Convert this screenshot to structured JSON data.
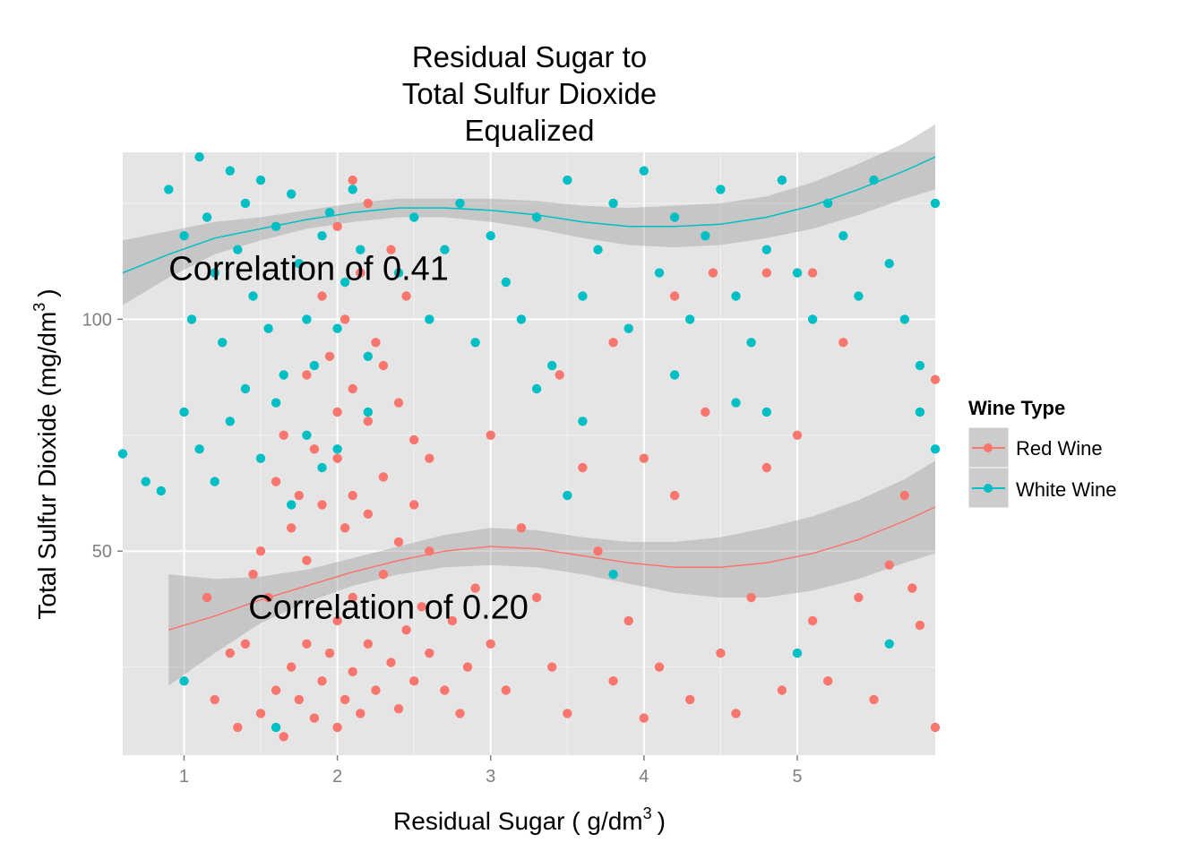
{
  "chart_data": {
    "type": "scatter",
    "title_lines": [
      "Residual Sugar to",
      "Total Sulfur Dioxide",
      "Equalized"
    ],
    "xlabel_main": "Residual Sugar ( g",
    "xlabel_unit": "dm",
    "xlabel_sup": "3",
    "xlabel_close": ")",
    "ylabel_main": "Total Sulfur Dioxide (mg",
    "ylabel_unit": "dm",
    "ylabel_sup": "3",
    "ylabel_close": ")",
    "xlim": [
      0.6,
      5.9
    ],
    "ylim": [
      6,
      136
    ],
    "x_ticks": [
      1,
      2,
      3,
      4,
      5
    ],
    "x_tick_labels": [
      "1",
      "2",
      "3",
      "4",
      "5"
    ],
    "y_ticks": [
      50,
      100
    ],
    "y_tick_labels": [
      "50",
      "100"
    ],
    "grid": true,
    "legend": {
      "title": "Wine Type",
      "position": "right",
      "entries": [
        "Red Wine",
        "White Wine"
      ]
    },
    "annotations": [
      {
        "text": "Correlation of 0.41",
        "x": 0.9,
        "y": 111
      },
      {
        "text": "Correlation of 0.20",
        "x": 1.42,
        "y": 38
      }
    ],
    "series": [
      {
        "name": "Red Wine",
        "color": "#f8766d",
        "points": [
          [
            1.35,
            12
          ],
          [
            1.5,
            15
          ],
          [
            1.6,
            20
          ],
          [
            1.65,
            10
          ],
          [
            1.7,
            25
          ],
          [
            1.75,
            18
          ],
          [
            1.8,
            30
          ],
          [
            1.85,
            14
          ],
          [
            1.9,
            22
          ],
          [
            1.95,
            28
          ],
          [
            2.0,
            12
          ],
          [
            2.0,
            35
          ],
          [
            2.05,
            18
          ],
          [
            2.1,
            24
          ],
          [
            2.1,
            40
          ],
          [
            2.15,
            15
          ],
          [
            2.2,
            30
          ],
          [
            2.25,
            20
          ],
          [
            2.3,
            45
          ],
          [
            2.35,
            26
          ],
          [
            2.4,
            16
          ],
          [
            2.45,
            33
          ],
          [
            2.5,
            22
          ],
          [
            2.55,
            38
          ],
          [
            2.6,
            28
          ],
          [
            2.7,
            20
          ],
          [
            2.8,
            15
          ],
          [
            1.4,
            30
          ],
          [
            1.55,
            40
          ],
          [
            1.7,
            55
          ],
          [
            1.8,
            48
          ],
          [
            1.9,
            60
          ],
          [
            2.0,
            70
          ],
          [
            2.05,
            55
          ],
          [
            2.1,
            62
          ],
          [
            2.2,
            58
          ],
          [
            2.3,
            66
          ],
          [
            2.4,
            52
          ],
          [
            2.5,
            60
          ],
          [
            2.6,
            50
          ],
          [
            1.75,
            62
          ],
          [
            1.85,
            72
          ],
          [
            2.0,
            80
          ],
          [
            2.1,
            85
          ],
          [
            2.2,
            78
          ],
          [
            2.3,
            90
          ],
          [
            2.4,
            82
          ],
          [
            2.5,
            74
          ],
          [
            2.6,
            70
          ],
          [
            1.95,
            92
          ],
          [
            2.05,
            100
          ],
          [
            2.15,
            110
          ],
          [
            2.25,
            95
          ],
          [
            2.0,
            120
          ],
          [
            2.1,
            130
          ],
          [
            1.9,
            105
          ],
          [
            2.2,
            125
          ],
          [
            2.35,
            115
          ],
          [
            2.45,
            105
          ],
          [
            1.8,
            88
          ],
          [
            1.65,
            75
          ],
          [
            1.6,
            65
          ],
          [
            1.5,
            50
          ],
          [
            1.45,
            45
          ],
          [
            1.3,
            28
          ],
          [
            1.2,
            18
          ],
          [
            1.15,
            40
          ],
          [
            2.75,
            35
          ],
          [
            2.85,
            25
          ],
          [
            2.9,
            42
          ],
          [
            3.0,
            30
          ],
          [
            3.1,
            20
          ],
          [
            3.2,
            55
          ],
          [
            3.3,
            40
          ],
          [
            3.4,
            25
          ],
          [
            3.5,
            15
          ],
          [
            3.6,
            68
          ],
          [
            3.7,
            50
          ],
          [
            3.8,
            22
          ],
          [
            3.9,
            35
          ],
          [
            4.0,
            70
          ],
          [
            4.0,
            14
          ],
          [
            4.1,
            25
          ],
          [
            4.2,
            62
          ],
          [
            4.3,
            18
          ],
          [
            4.4,
            80
          ],
          [
            4.5,
            28
          ],
          [
            4.6,
            15
          ],
          [
            4.7,
            40
          ],
          [
            4.8,
            68
          ],
          [
            4.9,
            20
          ],
          [
            5.0,
            75
          ],
          [
            5.1,
            35
          ],
          [
            5.2,
            22
          ],
          [
            5.3,
            95
          ],
          [
            5.4,
            40
          ],
          [
            5.5,
            18
          ],
          [
            5.6,
            47
          ],
          [
            5.7,
            62
          ],
          [
            5.8,
            34
          ],
          [
            5.9,
            12
          ],
          [
            5.9,
            87
          ],
          [
            5.75,
            42
          ],
          [
            4.45,
            110
          ],
          [
            4.8,
            110
          ],
          [
            5.1,
            110
          ],
          [
            3.45,
            88
          ],
          [
            3.8,
            95
          ],
          [
            4.2,
            105
          ],
          [
            3.0,
            75
          ]
        ]
      },
      {
        "name": "White Wine",
        "color": "#00bfc4",
        "points": [
          [
            0.6,
            71
          ],
          [
            0.75,
            65
          ],
          [
            0.9,
            128
          ],
          [
            1.0,
            118
          ],
          [
            1.05,
            100
          ],
          [
            1.1,
            135
          ],
          [
            1.15,
            122
          ],
          [
            1.2,
            110
          ],
          [
            1.25,
            95
          ],
          [
            1.3,
            132
          ],
          [
            1.35,
            115
          ],
          [
            1.4,
            125
          ],
          [
            1.45,
            105
          ],
          [
            1.5,
            130
          ],
          [
            1.55,
            98
          ],
          [
            1.6,
            120
          ],
          [
            1.65,
            88
          ],
          [
            1.7,
            127
          ],
          [
            1.75,
            112
          ],
          [
            1.8,
            100
          ],
          [
            1.85,
            90
          ],
          [
            1.9,
            118
          ],
          [
            1.95,
            123
          ],
          [
            2.0,
            98
          ],
          [
            2.05,
            108
          ],
          [
            2.1,
            128
          ],
          [
            2.15,
            115
          ],
          [
            2.2,
            92
          ],
          [
            1.0,
            80
          ],
          [
            1.1,
            72
          ],
          [
            1.2,
            65
          ],
          [
            1.3,
            78
          ],
          [
            1.4,
            85
          ],
          [
            1.5,
            70
          ],
          [
            1.6,
            82
          ],
          [
            1.7,
            60
          ],
          [
            1.8,
            75
          ],
          [
            1.9,
            68
          ],
          [
            2.0,
            72
          ],
          [
            2.2,
            80
          ],
          [
            2.4,
            110
          ],
          [
            2.5,
            122
          ],
          [
            2.6,
            100
          ],
          [
            2.7,
            115
          ],
          [
            2.8,
            125
          ],
          [
            2.9,
            95
          ],
          [
            3.0,
            118
          ],
          [
            3.1,
            108
          ],
          [
            3.2,
            100
          ],
          [
            3.3,
            122
          ],
          [
            3.4,
            90
          ],
          [
            3.5,
            130
          ],
          [
            3.6,
            105
          ],
          [
            3.7,
            115
          ],
          [
            3.8,
            125
          ],
          [
            3.9,
            98
          ],
          [
            4.0,
            132
          ],
          [
            4.1,
            110
          ],
          [
            4.2,
            122
          ],
          [
            4.3,
            100
          ],
          [
            4.4,
            118
          ],
          [
            4.5,
            128
          ],
          [
            4.6,
            105
          ],
          [
            4.7,
            95
          ],
          [
            4.8,
            115
          ],
          [
            4.9,
            130
          ],
          [
            5.0,
            110
          ],
          [
            5.1,
            100
          ],
          [
            5.2,
            125
          ],
          [
            5.3,
            118
          ],
          [
            5.4,
            105
          ],
          [
            5.5,
            130
          ],
          [
            5.6,
            112
          ],
          [
            5.7,
            100
          ],
          [
            5.8,
            90
          ],
          [
            5.9,
            125
          ],
          [
            3.3,
            85
          ],
          [
            3.6,
            78
          ],
          [
            4.2,
            88
          ],
          [
            4.6,
            82
          ],
          [
            5.0,
            28
          ],
          [
            5.6,
            30
          ],
          [
            5.8,
            80
          ],
          [
            1.0,
            22
          ],
          [
            0.85,
            63
          ],
          [
            1.6,
            12
          ],
          [
            3.5,
            62
          ],
          [
            3.8,
            45
          ],
          [
            4.8,
            80
          ],
          [
            5.9,
            72
          ]
        ]
      }
    ],
    "smooth": [
      {
        "name": "Red Wine",
        "color": "#f8766d",
        "x": [
          0.9,
          1.2,
          1.5,
          1.8,
          2.1,
          2.4,
          2.7,
          3.0,
          3.3,
          3.6,
          3.9,
          4.2,
          4.5,
          4.8,
          5.1,
          5.4,
          5.7,
          5.9
        ],
        "y": [
          33,
          36,
          39.5,
          42.5,
          45.5,
          48,
          50,
          51,
          50.5,
          49,
          47.5,
          46.5,
          46.5,
          47.5,
          49.5,
          52.5,
          56.5,
          59.5
        ],
        "se": [
          12,
          8,
          5,
          3.5,
          3,
          3,
          3.5,
          4,
          4,
          4,
          4.5,
          5.5,
          6.5,
          7.5,
          8,
          8.5,
          9,
          10
        ]
      },
      {
        "name": "White Wine",
        "color": "#00bfc4",
        "x": [
          0.6,
          0.9,
          1.2,
          1.5,
          1.8,
          2.1,
          2.4,
          2.7,
          3.0,
          3.3,
          3.6,
          3.9,
          4.2,
          4.5,
          4.8,
          5.1,
          5.4,
          5.7,
          5.9
        ],
        "y": [
          110,
          114,
          117.5,
          119.5,
          121.5,
          123,
          124,
          124,
          123.5,
          122.5,
          121,
          120,
          120,
          120.5,
          122,
          124.5,
          128,
          132,
          135
        ],
        "se": [
          7,
          5,
          3.5,
          2.5,
          2,
          2,
          2,
          2,
          2.5,
          3,
          3.5,
          4,
          4.5,
          4.5,
          4.5,
          5,
          5.5,
          6,
          7
        ]
      }
    ]
  }
}
